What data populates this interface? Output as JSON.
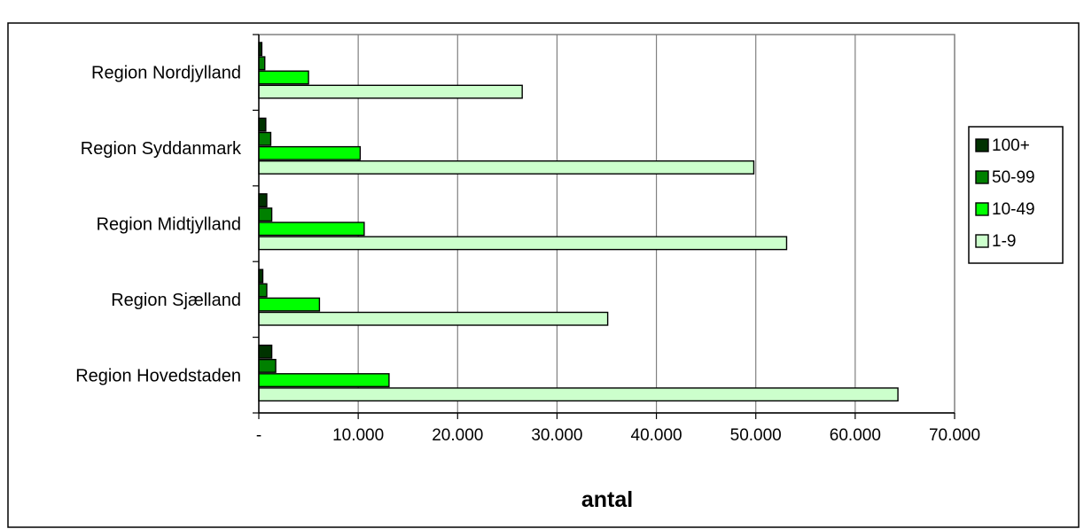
{
  "chart_data": {
    "type": "bar",
    "orientation": "horizontal",
    "title": "",
    "xlabel": "antal",
    "ylabel": "",
    "xlim": [
      0,
      70000
    ],
    "x_ticks": [
      0,
      10000,
      20000,
      30000,
      40000,
      50000,
      60000,
      70000
    ],
    "x_tick_labels": [
      "-",
      "10.000",
      "20.000",
      "30.000",
      "40.000",
      "50.000",
      "60.000",
      "70.000"
    ],
    "grid": "vertical",
    "legend_position": "right",
    "categories": [
      "Region Nordjylland",
      "Region Syddanmark",
      "Region Midtjylland",
      "Region Sjælland",
      "Region Hovedstaden"
    ],
    "series": [
      {
        "name": "100+",
        "color": "#003300",
        "values": [
          300,
          700,
          800,
          400,
          1300
        ]
      },
      {
        "name": "50-99",
        "color": "#008000",
        "values": [
          600,
          1200,
          1300,
          800,
          1700
        ]
      },
      {
        "name": "10-49",
        "color": "#00ff00",
        "values": [
          5000,
          10200,
          10600,
          6100,
          13100
        ]
      },
      {
        "name": "1-9",
        "color": "#ccffcc",
        "values": [
          26500,
          49800,
          53100,
          35100,
          64300
        ]
      }
    ]
  }
}
